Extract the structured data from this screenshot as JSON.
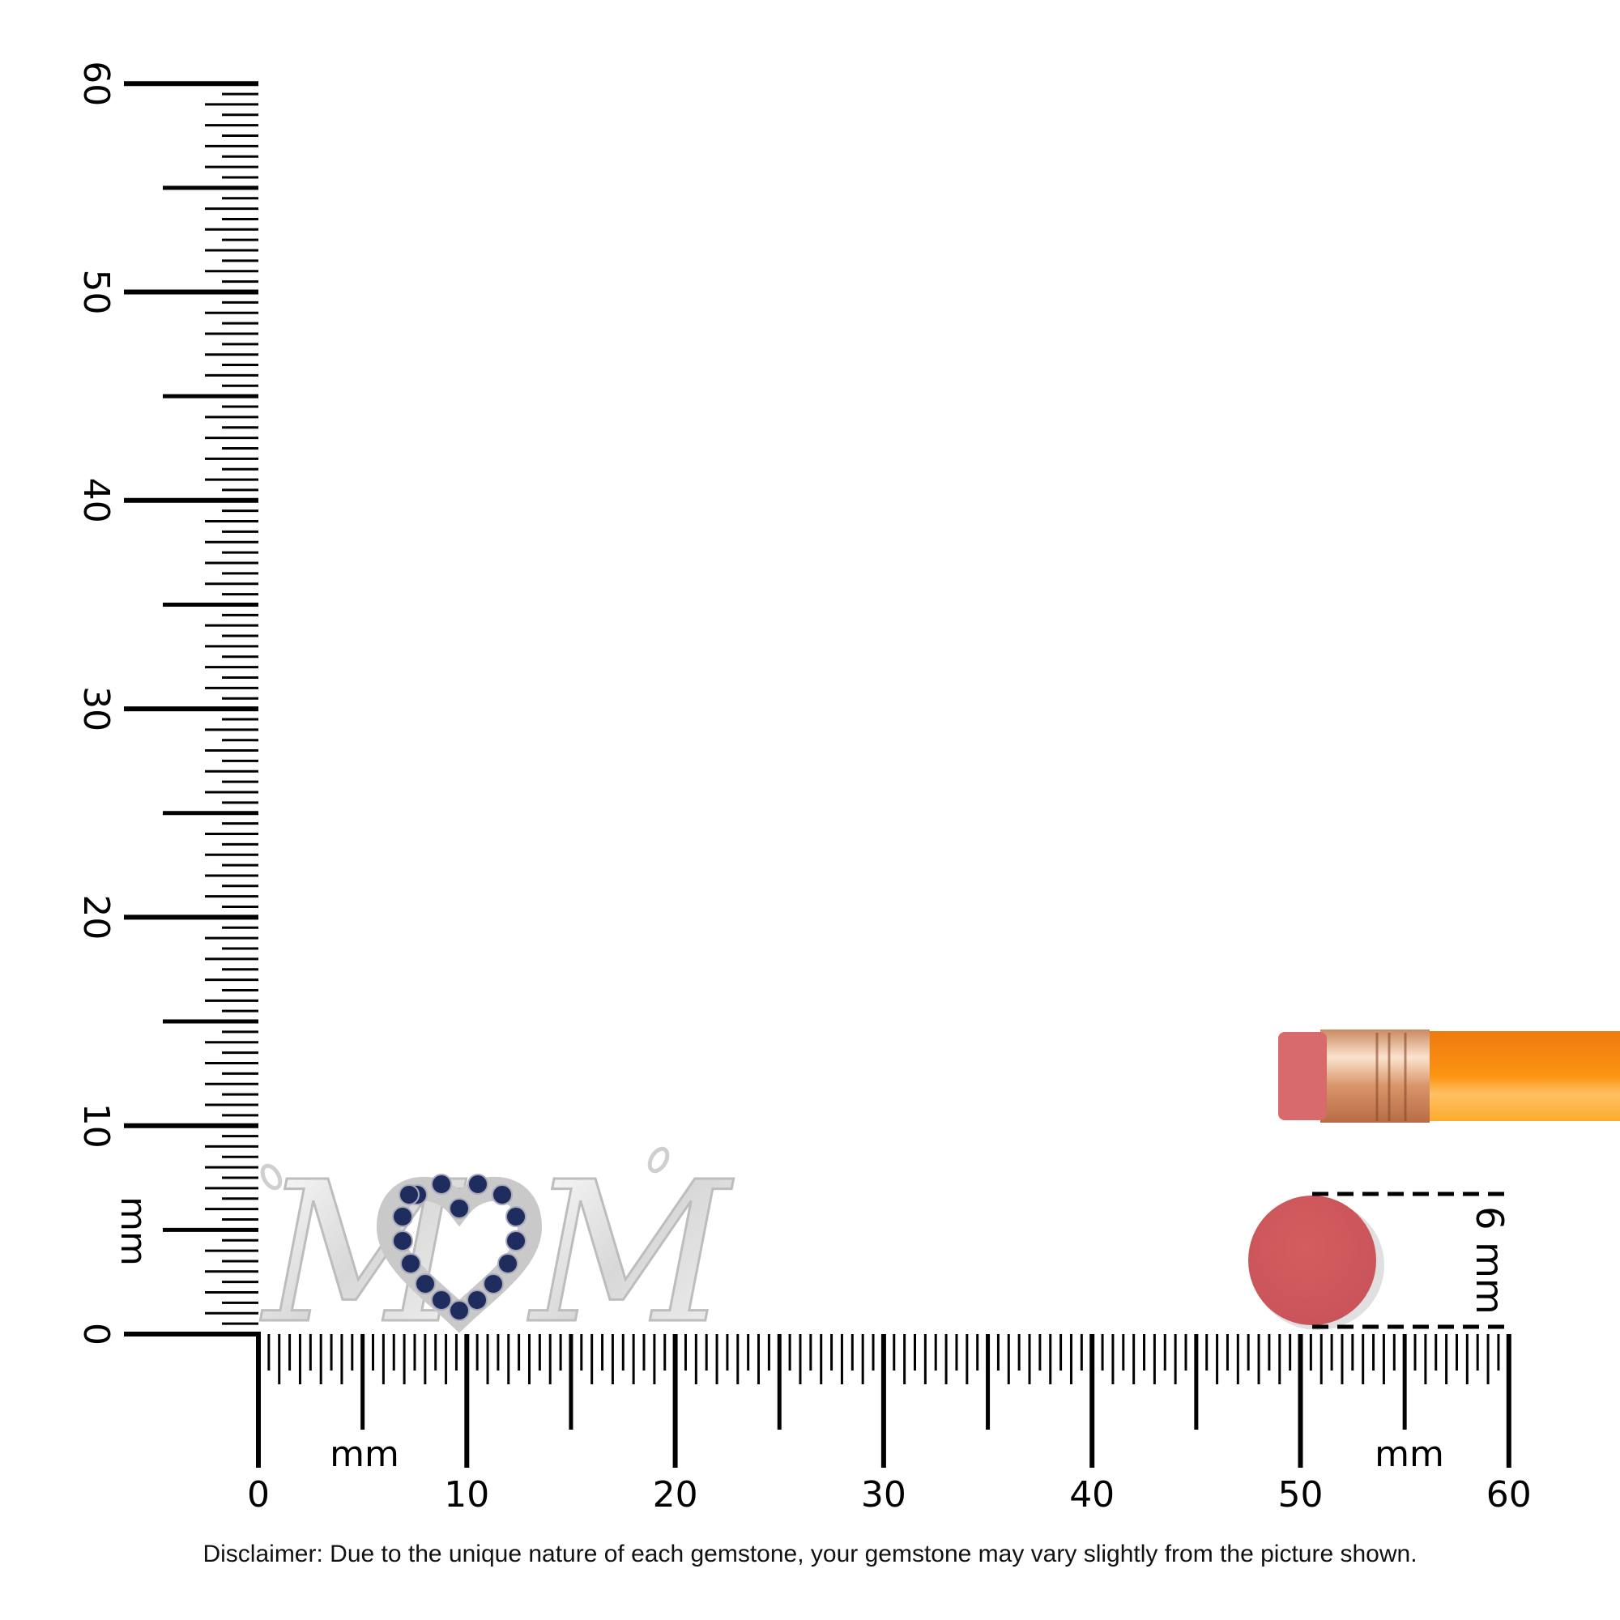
{
  "ruler": {
    "unit": "mm",
    "horizontal_labels": [
      "0",
      "10",
      "20",
      "30",
      "40",
      "50",
      "60"
    ],
    "vertical_labels": [
      "0",
      "10",
      "20",
      "30",
      "40",
      "50",
      "60"
    ],
    "range_mm": [
      0,
      60
    ]
  },
  "product": {
    "letters": [
      "M",
      "M"
    ],
    "stone_count": 17,
    "metal_color": "#e4e4e4",
    "stone_color": "#1f2d5e"
  },
  "reference": {
    "size_label": "6 mm",
    "size_mm": 6,
    "eraser_color": "#d05a5c",
    "pencil_color": "#f7941d"
  },
  "disclaimer": "Disclaimer: Due to the unique nature of each gemstone, your gemstone may vary slightly from the picture shown."
}
